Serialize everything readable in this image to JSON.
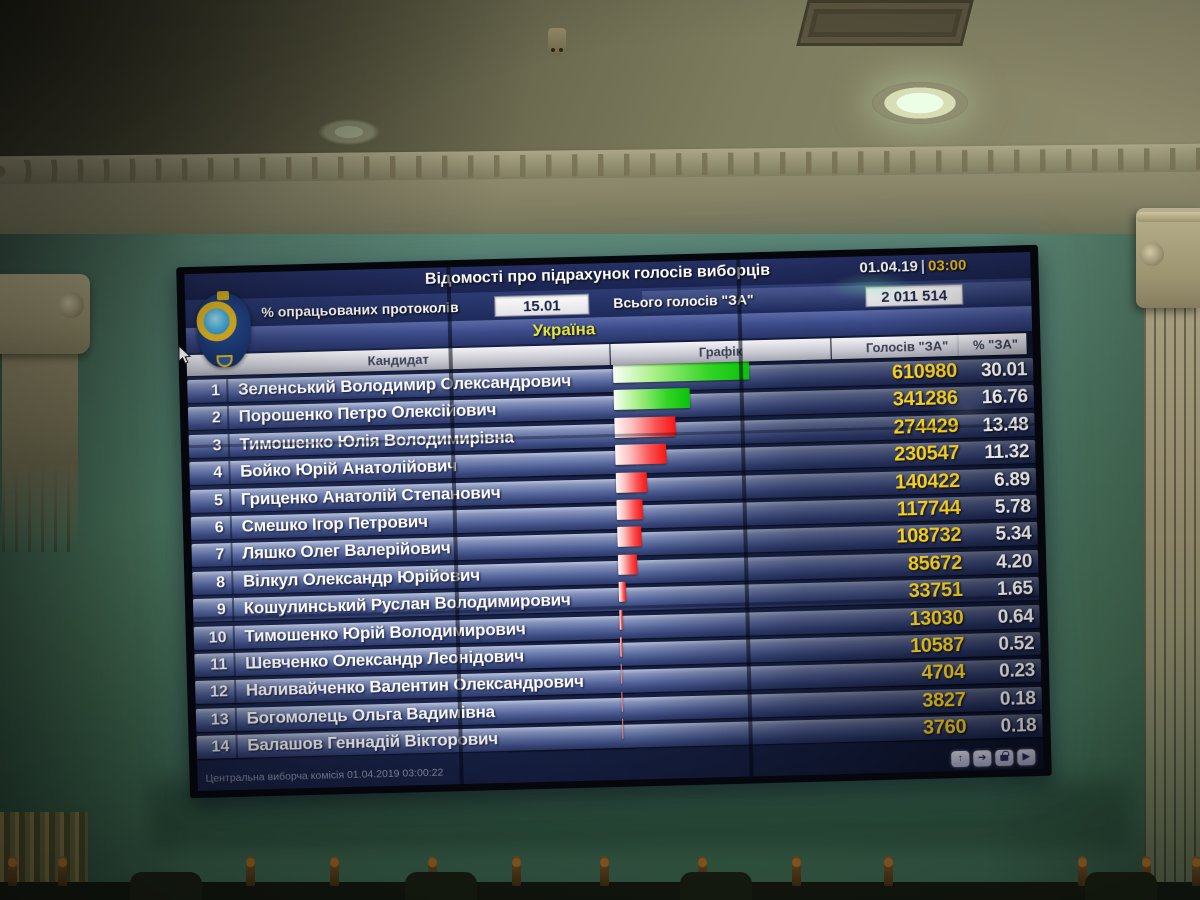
{
  "screen": {
    "header": {
      "title": "Відомості про підрахунок голосів виборців",
      "date": "01.04.19",
      "separator": "|",
      "time": "03:00",
      "protocols_label": "% опрацьованих протоколів",
      "protocols_value": "15.01",
      "total_label": "Всього голосів \"ЗА\"",
      "total_value": "2 011 514",
      "region": "Україна"
    },
    "columns": {
      "candidate": "Кандидат",
      "graph": "Графік",
      "votes": "Голосів \"ЗА\"",
      "pct": "% \"ЗА\""
    },
    "rows": [
      {
        "num": "1",
        "name": "Зеленський Володимир Олександрович",
        "votes": "610980",
        "pct": "30.01",
        "color": "green"
      },
      {
        "num": "2",
        "name": "Порошенко Петро Олексійович",
        "votes": "341286",
        "pct": "16.76",
        "color": "green"
      },
      {
        "num": "3",
        "name": "Тимошенко Юлія Володимирівна",
        "votes": "274429",
        "pct": "13.48",
        "color": "red"
      },
      {
        "num": "4",
        "name": "Бойко Юрій Анатолійович",
        "votes": "230547",
        "pct": "11.32",
        "color": "red"
      },
      {
        "num": "5",
        "name": "Гриценко Анатолій Степанович",
        "votes": "140422",
        "pct": "6.89",
        "color": "red"
      },
      {
        "num": "6",
        "name": "Смешко Ігор Петрович",
        "votes": "117744",
        "pct": "5.78",
        "color": "red"
      },
      {
        "num": "7",
        "name": "Ляшко Олег Валерійович",
        "votes": "108732",
        "pct": "5.34",
        "color": "red"
      },
      {
        "num": "8",
        "name": "Вілкул Олександр Юрійович",
        "votes": "85672",
        "pct": "4.20",
        "color": "red"
      },
      {
        "num": "9",
        "name": "Кошулинський Руслан Володимирович",
        "votes": "33751",
        "pct": "1.65",
        "color": "red"
      },
      {
        "num": "10",
        "name": "Тимошенко Юрій Володимирович",
        "votes": "13030",
        "pct": "0.64",
        "color": "red"
      },
      {
        "num": "11",
        "name": "Шевченко Олександр Леонідович",
        "votes": "10587",
        "pct": "0.52",
        "color": "red"
      },
      {
        "num": "12",
        "name": "Наливайченко Валентин Олександрович",
        "votes": "4704",
        "pct": "0.23",
        "color": "red"
      },
      {
        "num": "13",
        "name": "Богомолець Ольга Вадимівна",
        "votes": "3827",
        "pct": "0.18",
        "color": "red"
      },
      {
        "num": "14",
        "name": "Балашов Геннадій Вікторович",
        "votes": "3760",
        "pct": "0.18",
        "color": "red"
      }
    ],
    "footer": {
      "status": "Центральна виборча комісія 01.04.2019 03:00:22",
      "buttons": [
        {
          "name": "scroll-up",
          "glyph": "↑"
        },
        {
          "name": "forward",
          "glyph": "➔"
        },
        {
          "name": "lock",
          "glyph": "lock"
        },
        {
          "name": "play",
          "glyph": "▶"
        }
      ]
    },
    "accent_colors": {
      "votes_yellow": "#f8d018",
      "time_yellow": "#f7c414",
      "region_yellow": "#e3e53c",
      "bar_green": "#04c404",
      "bar_red": "#ff1515"
    }
  },
  "chart_data": {
    "type": "bar",
    "orientation": "horizontal",
    "title": "Відомості про підрахунок голосів виборців",
    "region": "Україна",
    "date": "01.04.19",
    "time": "03:00",
    "protocols_processed_pct": 15.01,
    "total_votes_za": 2011514,
    "categories": [
      "Зеленський Володимир Олександрович",
      "Порошенко Петро Олексійович",
      "Тимошенко Юлія Володимирівна",
      "Бойко Юрій Анатолійович",
      "Гриценко Анатолій Степанович",
      "Смешко Ігор Петрович",
      "Ляшко Олег Валерійович",
      "Вілкул Олександр Юрійович",
      "Кошулинський Руслан Володимирович",
      "Тимошенко Юрій Володимирович",
      "Шевченко Олександр Леонідович",
      "Наливайченко Валентин Олександрович",
      "Богомолець Ольга Вадимівна",
      "Балашов Геннадій Вікторович"
    ],
    "series": [
      {
        "name": "Голосів \"ЗА\"",
        "values": [
          610980,
          341286,
          274429,
          230547,
          140422,
          117744,
          108732,
          85672,
          33751,
          13030,
          10587,
          4704,
          3827,
          3760
        ]
      },
      {
        "name": "% \"ЗА\"",
        "values": [
          30.01,
          16.76,
          13.48,
          11.32,
          6.89,
          5.78,
          5.34,
          4.2,
          1.65,
          0.64,
          0.52,
          0.23,
          0.18,
          0.18
        ]
      }
    ],
    "bar_colors": [
      "#04c404",
      "#04c404",
      "#ff1515",
      "#ff1515",
      "#ff1515",
      "#ff1515",
      "#ff1515",
      "#ff1515",
      "#ff1515",
      "#ff1515",
      "#ff1515",
      "#ff1515",
      "#ff1515",
      "#ff1515"
    ],
    "xlim": [
      0,
      33
    ],
    "grid": false,
    "legend_position": "none",
    "footer": "Центральна виборча комісія 01.04.2019 03:00:22"
  }
}
